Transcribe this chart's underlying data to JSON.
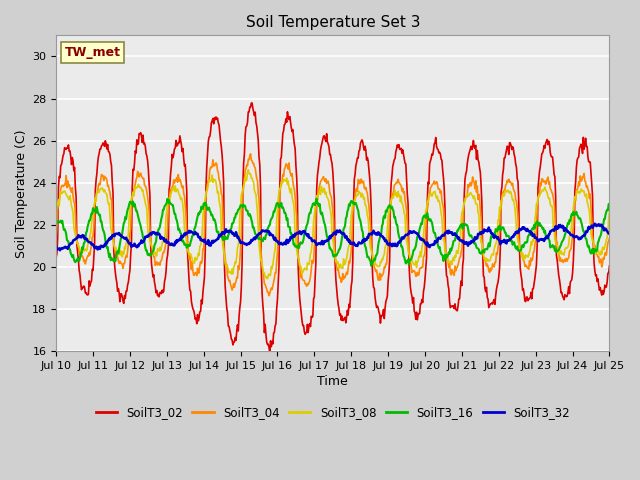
{
  "title": "Soil Temperature Set 3",
  "xlabel": "Time",
  "ylabel": "Soil Temperature (C)",
  "ylim": [
    16,
    31
  ],
  "yticks": [
    16,
    18,
    20,
    22,
    24,
    26,
    28,
    30
  ],
  "fig_bg_color": "#d0d0d0",
  "plot_bg_color": "#ebebeb",
  "grid_color": "#ffffff",
  "annotation_text": "TW_met",
  "annotation_color": "#880000",
  "annotation_bg": "#ffffcc",
  "annotation_border": "#888844",
  "series_colors": [
    "#dd0000",
    "#ff8800",
    "#ddcc00",
    "#00bb00",
    "#0000cc"
  ],
  "series_lw": [
    1.2,
    1.2,
    1.2,
    1.5,
    1.8
  ],
  "legend_labels": [
    "SoilT3_02",
    "SoilT3_04",
    "SoilT3_08",
    "SoilT3_16",
    "SoilT3_32"
  ]
}
